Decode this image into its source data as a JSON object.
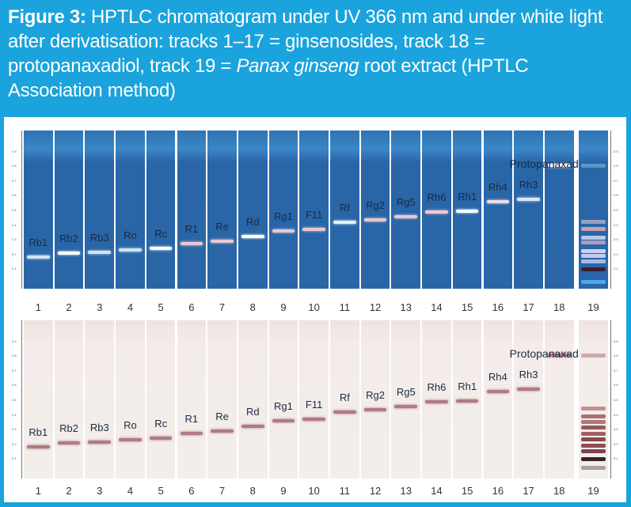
{
  "caption": {
    "bold": "Figure 3:",
    "text": " HPTLC chromatogram under UV 366 nm and under white light after derivatisation: tracks 1–17 = ginsenosides, track 18 = protopanaxadiol, track 19 = ",
    "italic": "Panax ginseng",
    "tail": " root extract (HPTLC Association method)"
  },
  "colors": {
    "frame": "#1aa3dc",
    "uv_plate": "#2a66a6",
    "white_plate": "#f1ece8"
  },
  "scale_ticks": [
    "0.1",
    "0.2",
    "0.3",
    "0.4",
    "0.5",
    "0.6",
    "0.7",
    "0.8",
    "0.9"
  ],
  "tracks": [
    {
      "n": "1",
      "label": "Rb1",
      "rf": 0.19,
      "uv": "#cfe3f5"
    },
    {
      "n": "2",
      "label": "Rb2",
      "rf": 0.215,
      "uv": "#ffffff"
    },
    {
      "n": "3",
      "label": "Rb3",
      "rf": 0.22,
      "uv": "#cfe3f5"
    },
    {
      "n": "4",
      "label": "Ro",
      "rf": 0.235,
      "uv": "#cfe3f5"
    },
    {
      "n": "5",
      "label": "Rc",
      "rf": 0.25,
      "uv": "#ffffff"
    },
    {
      "n": "6",
      "label": "R1",
      "rf": 0.28,
      "uv": "#e8c8d0"
    },
    {
      "n": "7",
      "label": "Re",
      "rf": 0.295,
      "uv": "#e8c8d0"
    },
    {
      "n": "8",
      "label": "Rd",
      "rf": 0.33,
      "uv": "#ffffff"
    },
    {
      "n": "9",
      "label": "Rg1",
      "rf": 0.365,
      "uv": "#e8c8d0"
    },
    {
      "n": "10",
      "label": "F11",
      "rf": 0.375,
      "uv": "#e8c8d0"
    },
    {
      "n": "11",
      "label": "Rf",
      "rf": 0.425,
      "uv": "#e6eef8"
    },
    {
      "n": "12",
      "label": "Rg2",
      "rf": 0.44,
      "uv": "#e8c8d0"
    },
    {
      "n": "13",
      "label": "Rg5",
      "rf": 0.46,
      "uv": "#e8c8d0"
    },
    {
      "n": "14",
      "label": "Rh6",
      "rf": 0.495,
      "uv": "#eccad2"
    },
    {
      "n": "15",
      "label": "Rh1",
      "rf": 0.5,
      "uv": "#ffffff"
    },
    {
      "n": "16",
      "label": "Rh4",
      "rf": 0.565,
      "uv": "#ecdce4"
    },
    {
      "n": "17",
      "label": "Rh3",
      "rf": 0.58,
      "uv": "#dce6f4"
    },
    {
      "n": "18",
      "label": "Protopanaxadiol",
      "rf": 0.81,
      "uv": "#ffffff"
    },
    {
      "n": "19",
      "label": "",
      "rf": null,
      "uv": ""
    }
  ],
  "extract_bands_uv": [
    {
      "rf": 0.81,
      "c": "#5f95c8"
    },
    {
      "rf": 0.43,
      "c": "#9aa0c0"
    },
    {
      "rf": 0.38,
      "c": "#c7a0b0"
    },
    {
      "rf": 0.32,
      "c": "#b8c8ec"
    },
    {
      "rf": 0.29,
      "c": "#b09ab8"
    },
    {
      "rf": 0.23,
      "c": "#c8d4f4"
    },
    {
      "rf": 0.2,
      "c": "#c0ccf0"
    },
    {
      "rf": 0.16,
      "c": "#a8b8e8"
    },
    {
      "rf": 0.11,
      "c": "#3a2030"
    },
    {
      "rf": 0.02,
      "c": "#4aa8f0"
    }
  ],
  "extract_bands_white": [
    {
      "rf": 0.81,
      "c": "#d0a8a8"
    },
    {
      "rf": 0.45,
      "c": "#c09090"
    },
    {
      "rf": 0.4,
      "c": "#a87070"
    },
    {
      "rf": 0.36,
      "c": "#b07878"
    },
    {
      "rf": 0.32,
      "c": "#985858"
    },
    {
      "rf": 0.28,
      "c": "#a06060"
    },
    {
      "rf": 0.24,
      "c": "#8a4848"
    },
    {
      "rf": 0.2,
      "c": "#904c50"
    },
    {
      "rf": 0.16,
      "c": "#804050"
    },
    {
      "rf": 0.11,
      "c": "#3a2028"
    },
    {
      "rf": 0.05,
      "c": "#b0a0a0"
    }
  ]
}
